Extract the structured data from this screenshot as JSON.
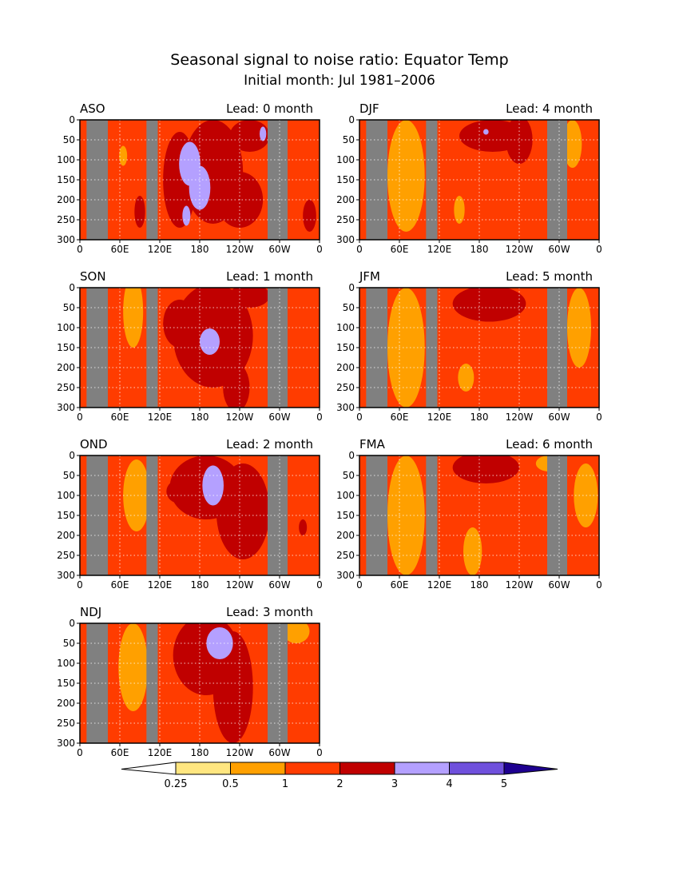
{
  "title": "Seasonal signal to noise ratio: Equator Temp",
  "subtitle": "Initial month: Jul 1981–2006",
  "colors": {
    "land": "#808080",
    "levels": [
      "#ffffff",
      "#ffe680",
      "#ffa000",
      "#ff3c00",
      "#c00000",
      "#b4a0ff",
      "#6f50dc",
      "#1e0090"
    ]
  },
  "chart_data": {
    "type": "heatmap",
    "x_ticks": [
      "0",
      "60E",
      "120E",
      "180",
      "120W",
      "60W",
      "0"
    ],
    "y_ticks": [
      "0",
      "50",
      "100",
      "150",
      "200",
      "250",
      "300"
    ],
    "xlim_deg_east": [
      0,
      360
    ],
    "ylim_depth": [
      0,
      300
    ],
    "y_reversed": true,
    "grid": true,
    "colorbar": {
      "levels": [
        "0.25",
        "0.5",
        "1",
        "2",
        "3",
        "4",
        "5"
      ],
      "extend": "both"
    },
    "panels": [
      {
        "season": "ASO",
        "lead_label": "Lead: 0 month",
        "dominant_level": "1-2",
        "max_level": "3-4"
      },
      {
        "season": "DJF",
        "lead_label": "Lead: 4 month",
        "dominant_level": "1-2",
        "max_level": "3-4"
      },
      {
        "season": "SON",
        "lead_label": "Lead: 1 month",
        "dominant_level": "1-2",
        "max_level": "3-4"
      },
      {
        "season": "JFM",
        "lead_label": "Lead: 5 month",
        "dominant_level": "1-2",
        "max_level": "2-3"
      },
      {
        "season": "OND",
        "lead_label": "Lead: 2 month",
        "dominant_level": "1-2",
        "max_level": "3-4"
      },
      {
        "season": "FMA",
        "lead_label": "Lead: 6 month",
        "dominant_level": "1-2",
        "max_level": "2-3"
      },
      {
        "season": "NDJ",
        "lead_label": "Lead: 3 month",
        "dominant_level": "1-2",
        "max_level": "3-4"
      }
    ]
  }
}
